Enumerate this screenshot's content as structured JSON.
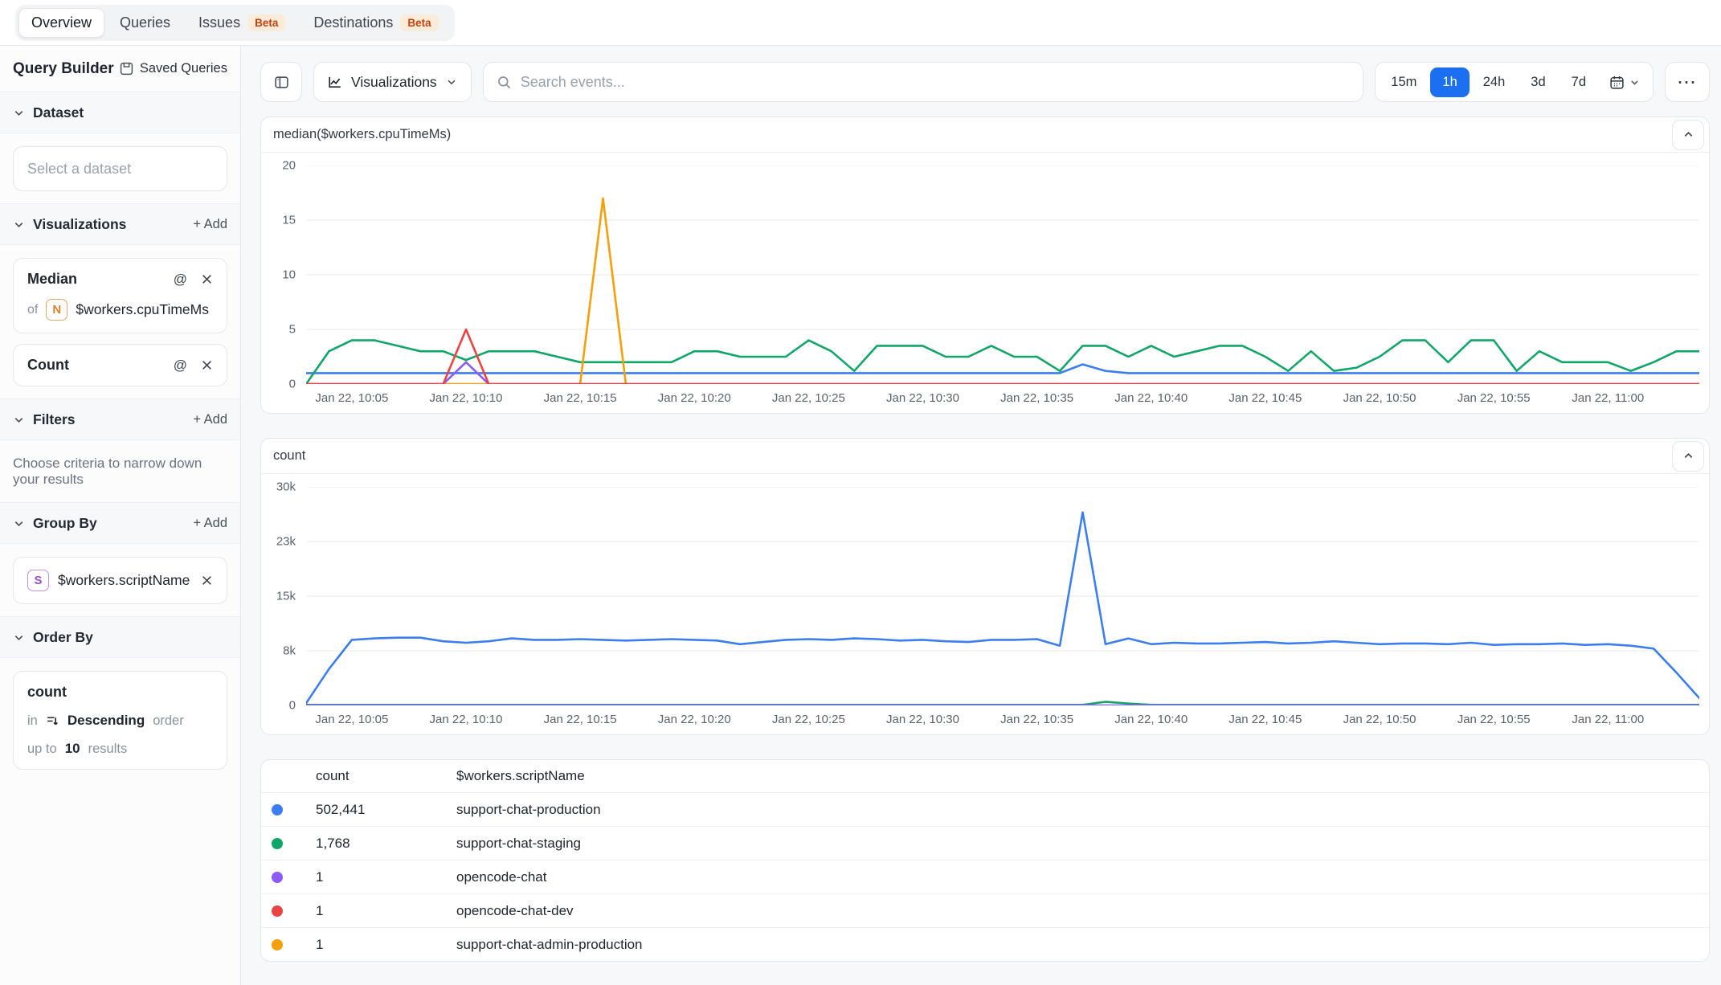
{
  "topnav": {
    "tabs": [
      {
        "label": "Overview",
        "selected": true
      },
      {
        "label": "Queries",
        "selected": false
      },
      {
        "label": "Issues",
        "selected": false,
        "badge": "Beta"
      },
      {
        "label": "Destinations",
        "selected": false,
        "badge": "Beta"
      }
    ]
  },
  "sidebar": {
    "title": "Query Builder",
    "saved_queries_label": "Saved Queries",
    "dataset": {
      "label": "Dataset",
      "placeholder": "Select a dataset"
    },
    "visualizations": {
      "label": "Visualizations",
      "add_label": "+ Add",
      "cards": [
        {
          "title": "Median",
          "of_label": "of",
          "field_badge": "N",
          "field": "$workers.cpuTimeMs"
        },
        {
          "title": "Count"
        }
      ]
    },
    "filters": {
      "label": "Filters",
      "add_label": "+ Add",
      "empty_text": "Choose criteria to narrow down your results"
    },
    "group_by": {
      "label": "Group By",
      "add_label": "+ Add",
      "card": {
        "badge": "S",
        "field": "$workers.scriptName"
      }
    },
    "order_by": {
      "label": "Order By",
      "card": {
        "field": "count",
        "in_label": "in",
        "direction": "Descending",
        "order_label": "order",
        "upto_label": "up to",
        "limit": "10",
        "results_label": "results"
      }
    }
  },
  "toolbar": {
    "visualizations_label": "Visualizations",
    "search_placeholder": "Search events...",
    "ranges": [
      "15m",
      "1h",
      "24h",
      "3d",
      "7d"
    ],
    "selected_range": "1h",
    "accent_color": "#1d6ff2",
    "more_icon": "⋯"
  },
  "icons": {
    "at_symbol": "@"
  },
  "chart_data": [
    {
      "type": "line",
      "title": "median($workers.cpuTimeMs)",
      "ylim": [
        0,
        20
      ],
      "ymax": 20,
      "tmax": 61,
      "grid": true,
      "yticks": [
        {
          "v": 0,
          "label": "0"
        },
        {
          "v": 5,
          "label": "5"
        },
        {
          "v": 10,
          "label": "10"
        },
        {
          "v": 15,
          "label": "15"
        },
        {
          "v": 20,
          "label": "20"
        }
      ],
      "xticks": [
        {
          "t": 2,
          "label": "Jan 22, 10:05"
        },
        {
          "t": 7,
          "label": "Jan 22, 10:10"
        },
        {
          "t": 12,
          "label": "Jan 22, 10:15"
        },
        {
          "t": 17,
          "label": "Jan 22, 10:20"
        },
        {
          "t": 22,
          "label": "Jan 22, 10:25"
        },
        {
          "t": 27,
          "label": "Jan 22, 10:30"
        },
        {
          "t": 32,
          "label": "Jan 22, 10:35"
        },
        {
          "t": 37,
          "label": "Jan 22, 10:40"
        },
        {
          "t": 42,
          "label": "Jan 22, 10:45"
        },
        {
          "t": 47,
          "label": "Jan 22, 10:50"
        },
        {
          "t": 52,
          "label": "Jan 22, 10:55"
        },
        {
          "t": 57,
          "label": "Jan 22, 11:00"
        }
      ],
      "series": [
        {
          "name": "support-chat-production",
          "color": "#3b7ef2",
          "values": [
            1,
            1,
            1,
            1,
            1,
            1,
            1,
            1,
            1,
            1,
            1,
            1,
            1,
            1,
            1,
            1,
            1,
            1,
            1,
            1,
            1,
            1,
            1,
            1,
            1,
            1,
            1,
            1,
            1,
            1,
            1,
            1,
            1,
            1,
            1.8,
            1.2,
            1,
            1,
            1,
            1,
            1,
            1,
            1,
            1,
            1,
            1,
            1,
            1,
            1,
            1,
            1,
            1,
            1,
            1,
            1,
            1,
            1,
            1,
            1,
            1,
            1,
            1
          ]
        },
        {
          "name": "support-chat-staging",
          "color": "#10a667",
          "values": [
            0,
            3,
            4,
            4,
            3.5,
            3,
            3,
            2.2,
            3,
            3,
            3,
            2.5,
            2,
            2,
            2,
            2,
            2,
            3,
            3,
            2.5,
            2.5,
            2.5,
            4,
            3,
            1.2,
            3.5,
            3.5,
            3.5,
            2.5,
            2.5,
            3.5,
            2.5,
            2.5,
            1.2,
            3.5,
            3.5,
            2.5,
            3.5,
            2.5,
            3,
            3.5,
            3.5,
            2.5,
            1.2,
            3,
            1.2,
            1.5,
            2.5,
            4,
            4,
            2,
            4,
            4,
            1.2,
            3,
            2,
            2,
            2,
            1.2,
            2,
            3,
            3
          ]
        },
        {
          "name": "support-chat-admin-production",
          "color": "#f59f0b",
          "values": [
            0,
            0,
            0,
            0,
            0,
            0,
            0,
            0,
            0,
            0,
            0,
            0,
            0,
            17,
            0,
            0,
            0,
            0,
            0,
            0,
            0,
            0,
            0,
            0,
            0,
            0,
            0,
            0,
            0,
            0,
            0,
            0,
            0,
            0,
            0,
            0,
            0,
            0,
            0,
            0,
            0,
            0,
            0,
            0,
            0,
            0,
            0,
            0,
            0,
            0,
            0,
            0,
            0,
            0,
            0,
            0,
            0,
            0,
            0,
            0,
            0,
            0
          ]
        },
        {
          "name": "opencode-chat",
          "color": "#8b5cf6",
          "values": [
            0,
            0,
            0,
            0,
            0,
            0,
            0,
            2,
            0,
            0,
            0,
            0,
            0,
            0,
            0,
            0,
            0,
            0,
            0,
            0,
            0,
            0,
            0,
            0,
            0,
            0,
            0,
            0,
            0,
            0,
            0,
            0,
            0,
            0,
            0,
            0,
            0,
            0,
            0,
            0,
            0,
            0,
            0,
            0,
            0,
            0,
            0,
            0,
            0,
            0,
            0,
            0,
            0,
            0,
            0,
            0,
            0,
            0,
            0,
            0,
            0,
            0
          ]
        },
        {
          "name": "opencode-chat-dev",
          "color": "#ea4343",
          "values": [
            0,
            0,
            0,
            0,
            0,
            0,
            0,
            5,
            0,
            0,
            0,
            0,
            0,
            0,
            0,
            0,
            0,
            0,
            0,
            0,
            0,
            0,
            0,
            0,
            0,
            0,
            0,
            0,
            0,
            0,
            0,
            0,
            0,
            0,
            0,
            0,
            0,
            0,
            0,
            0,
            0,
            0,
            0,
            0,
            0,
            0,
            0,
            0,
            0,
            0,
            0,
            0,
            0,
            0,
            0,
            0,
            0,
            0,
            0,
            0,
            0,
            0
          ]
        }
      ]
    },
    {
      "type": "line",
      "title": "count",
      "ylim": [
        0,
        30000
      ],
      "ymax": 30,
      "tmax": 61,
      "grid": true,
      "yticks": [
        {
          "v": 0,
          "label": "0"
        },
        {
          "v": 7.5,
          "label": "8k"
        },
        {
          "v": 15,
          "label": "15k"
        },
        {
          "v": 22.5,
          "label": "23k"
        },
        {
          "v": 30,
          "label": "30k"
        }
      ],
      "xticks": [
        {
          "t": 2,
          "label": "Jan 22, 10:05"
        },
        {
          "t": 7,
          "label": "Jan 22, 10:10"
        },
        {
          "t": 12,
          "label": "Jan 22, 10:15"
        },
        {
          "t": 17,
          "label": "Jan 22, 10:20"
        },
        {
          "t": 22,
          "label": "Jan 22, 10:25"
        },
        {
          "t": 27,
          "label": "Jan 22, 10:30"
        },
        {
          "t": 32,
          "label": "Jan 22, 10:35"
        },
        {
          "t": 37,
          "label": "Jan 22, 10:40"
        },
        {
          "t": 42,
          "label": "Jan 22, 10:45"
        },
        {
          "t": 47,
          "label": "Jan 22, 10:50"
        },
        {
          "t": 52,
          "label": "Jan 22, 10:55"
        },
        {
          "t": 57,
          "label": "Jan 22, 11:00"
        }
      ],
      "series": [
        {
          "name": "support-chat-staging",
          "color": "#10a667",
          "values": [
            0.08,
            0.08,
            0.08,
            0.08,
            0.08,
            0.08,
            0.08,
            0.08,
            0.08,
            0.08,
            0.08,
            0.08,
            0.08,
            0.08,
            0.08,
            0.08,
            0.08,
            0.08,
            0.08,
            0.08,
            0.08,
            0.08,
            0.08,
            0.08,
            0.08,
            0.08,
            0.08,
            0.08,
            0.08,
            0.08,
            0.08,
            0.08,
            0.08,
            0.08,
            0.08,
            0.5,
            0.25,
            0.08,
            0.08,
            0.08,
            0.08,
            0.08,
            0.08,
            0.08,
            0.08,
            0.08,
            0.08,
            0.08,
            0.08,
            0.08,
            0.08,
            0.08,
            0.08,
            0.08,
            0.08,
            0.08,
            0.08,
            0.08,
            0.08,
            0.08,
            0.08,
            0.08
          ]
        },
        {
          "name": "opencode-chat",
          "color": "#8b5cf6",
          "values": [
            0,
            0,
            0,
            0,
            0,
            0,
            0,
            0,
            0,
            0,
            0,
            0,
            0,
            0,
            0,
            0,
            0,
            0,
            0,
            0,
            0,
            0,
            0,
            0,
            0,
            0,
            0,
            0,
            0,
            0,
            0,
            0,
            0,
            0,
            0,
            0,
            0,
            0,
            0,
            0,
            0,
            0,
            0,
            0,
            0,
            0,
            0,
            0,
            0,
            0,
            0,
            0,
            0,
            0,
            0,
            0,
            0,
            0,
            0,
            0,
            0,
            0
          ]
        },
        {
          "name": "support-chat-production",
          "color": "#3b7ef2",
          "values": [
            0.3,
            5,
            9,
            9.2,
            9.3,
            9.3,
            8.8,
            8.6,
            8.8,
            9.2,
            9,
            9,
            9.1,
            9,
            8.9,
            9,
            9.1,
            9,
            8.9,
            8.4,
            8.7,
            9,
            9.1,
            9,
            9.2,
            9.1,
            8.9,
            9,
            8.8,
            8.7,
            9,
            9,
            9.1,
            8.2,
            26.5,
            8.4,
            9.2,
            8.4,
            8.6,
            8.5,
            8.5,
            8.6,
            8.7,
            8.5,
            8.6,
            8.8,
            8.6,
            8.4,
            8.5,
            8.5,
            8.4,
            8.6,
            8.3,
            8.4,
            8.4,
            8.5,
            8.3,
            8.4,
            8.2,
            7.8,
            4.5,
            1
          ]
        }
      ]
    }
  ],
  "table": {
    "headers": {
      "count": "count",
      "name": "$workers.scriptName"
    },
    "rows": [
      {
        "color": "#3b7ef2",
        "count": "502,441",
        "name": "support-chat-production"
      },
      {
        "color": "#10a667",
        "count": "1,768",
        "name": "support-chat-staging"
      },
      {
        "color": "#8b5cf6",
        "count": "1",
        "name": "opencode-chat"
      },
      {
        "color": "#ea4343",
        "count": "1",
        "name": "opencode-chat-dev"
      },
      {
        "color": "#f59f0b",
        "count": "1",
        "name": "support-chat-admin-production"
      }
    ]
  }
}
